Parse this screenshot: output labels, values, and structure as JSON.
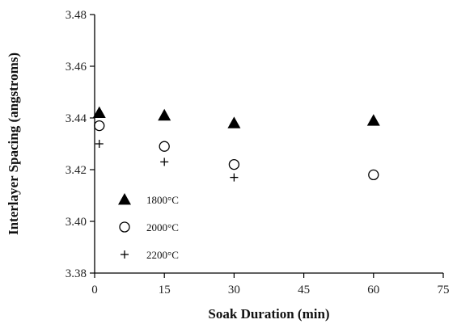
{
  "chart_data": {
    "type": "scatter",
    "xlabel": "Soak Duration (min)",
    "ylabel": "Interlayer Spacing (angstroms)",
    "xlim": [
      0,
      75
    ],
    "ylim": [
      3.38,
      3.48
    ],
    "x_ticks": [
      0,
      15,
      30,
      45,
      60,
      75
    ],
    "x_tick_labels": [
      "0",
      "15",
      "30",
      "45",
      "60",
      "75"
    ],
    "y_ticks": [
      3.38,
      3.4,
      3.42,
      3.44,
      3.46,
      3.48
    ],
    "y_tick_labels": [
      "3.38",
      "3.40",
      "3.42",
      "3.44",
      "3.46",
      "3.48"
    ],
    "grid": false,
    "legend_position": "lower-left",
    "series": [
      {
        "name": "1800°C",
        "marker": "filled-triangle",
        "color": "#000000",
        "x": [
          1,
          15,
          30,
          60
        ],
        "y": [
          3.442,
          3.441,
          3.438,
          3.439
        ]
      },
      {
        "name": "2000°C",
        "marker": "open-circle",
        "color": "#000000",
        "x": [
          1,
          15,
          30,
          60
        ],
        "y": [
          3.437,
          3.429,
          3.422,
          3.418
        ]
      },
      {
        "name": "2200°C",
        "marker": "plus",
        "color": "#000000",
        "x": [
          1,
          15,
          30
        ],
        "y": [
          3.43,
          3.423,
          3.417
        ]
      }
    ]
  }
}
